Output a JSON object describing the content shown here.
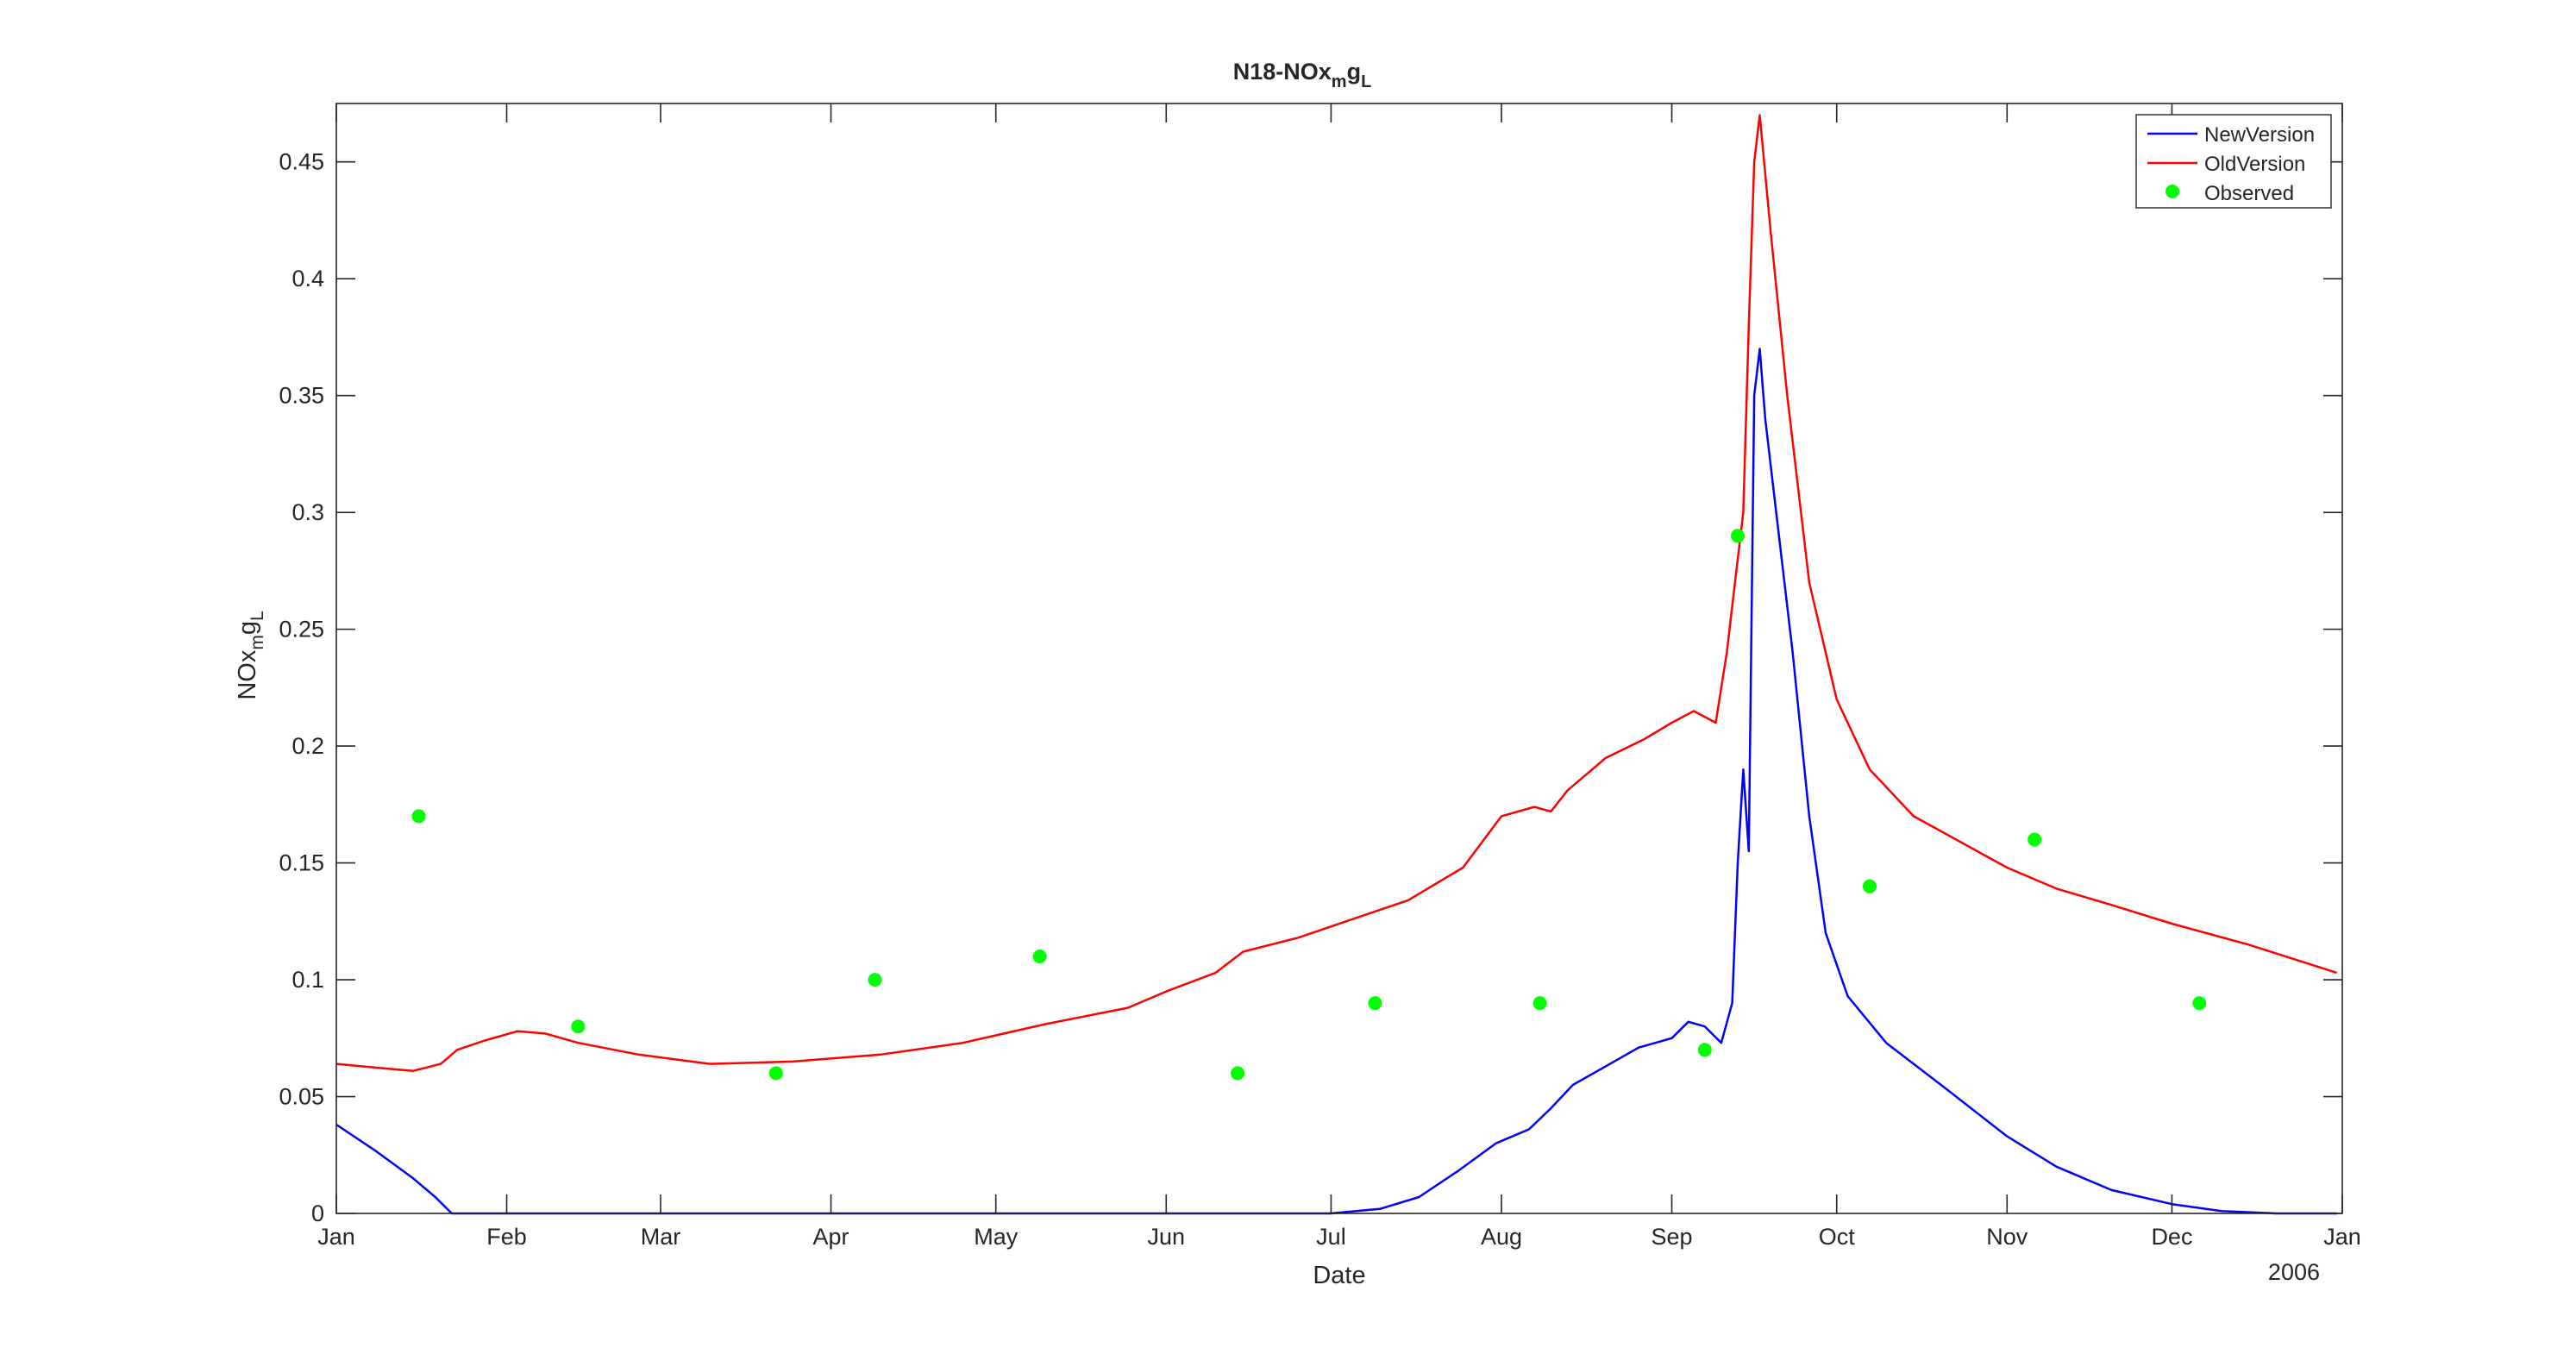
{
  "chart_data": {
    "type": "line",
    "title": {
      "main": "N18-NOx",
      "sub1": "m",
      "mid": "g",
      "sub2": "L"
    },
    "xlabel": "Date",
    "ylabel": {
      "main": "NOx",
      "sub1": "m",
      "mid": "g",
      "sub2": "L"
    },
    "year_label": "2006",
    "xlim": [
      "2006-01-01",
      "2007-01-01"
    ],
    "ylim": [
      0,
      0.475
    ],
    "x_ticks": [
      {
        "date": "2006-01-01",
        "label": "Jan"
      },
      {
        "date": "2006-02-01",
        "label": "Feb"
      },
      {
        "date": "2006-03-01",
        "label": "Mar"
      },
      {
        "date": "2006-04-01",
        "label": "Apr"
      },
      {
        "date": "2006-05-01",
        "label": "May"
      },
      {
        "date": "2006-06-01",
        "label": "Jun"
      },
      {
        "date": "2006-07-01",
        "label": "Jul"
      },
      {
        "date": "2006-08-01",
        "label": "Aug"
      },
      {
        "date": "2006-09-01",
        "label": "Sep"
      },
      {
        "date": "2006-10-01",
        "label": "Oct"
      },
      {
        "date": "2006-11-01",
        "label": "Nov"
      },
      {
        "date": "2006-12-01",
        "label": "Dec"
      },
      {
        "date": "2007-01-01",
        "label": "Jan"
      }
    ],
    "y_ticks": [
      {
        "value": 0,
        "label": "0"
      },
      {
        "value": 0.05,
        "label": "0.05"
      },
      {
        "value": 0.1,
        "label": "0.1"
      },
      {
        "value": 0.15,
        "label": "0.15"
      },
      {
        "value": 0.2,
        "label": "0.2"
      },
      {
        "value": 0.25,
        "label": "0.25"
      },
      {
        "value": 0.3,
        "label": "0.3"
      },
      {
        "value": 0.35,
        "label": "0.35"
      },
      {
        "value": 0.4,
        "label": "0.4"
      },
      {
        "value": 0.45,
        "label": "0.45"
      }
    ],
    "legend_position": "top-right",
    "grid": false,
    "series": [
      {
        "name": "NewVersion",
        "color": "#0000ff",
        "style": "line",
        "points": [
          [
            "2006-01-01",
            0.038
          ],
          [
            "2006-01-08",
            0.027
          ],
          [
            "2006-01-15",
            0.015
          ],
          [
            "2006-01-19",
            0.007
          ],
          [
            "2006-01-22",
            0.0
          ],
          [
            "2006-07-01",
            0.0
          ],
          [
            "2006-07-10",
            0.002
          ],
          [
            "2006-07-17",
            0.007
          ],
          [
            "2006-07-24",
            0.018
          ],
          [
            "2006-07-31",
            0.03
          ],
          [
            "2006-08-06",
            0.036
          ],
          [
            "2006-08-10",
            0.045
          ],
          [
            "2006-08-14",
            0.055
          ],
          [
            "2006-08-20",
            0.063
          ],
          [
            "2006-08-26",
            0.071
          ],
          [
            "2006-09-01",
            0.075
          ],
          [
            "2006-09-04",
            0.082
          ],
          [
            "2006-09-07",
            0.08
          ],
          [
            "2006-09-10",
            0.073
          ],
          [
            "2006-09-12",
            0.09
          ],
          [
            "2006-09-13",
            0.15
          ],
          [
            "2006-09-14",
            0.19
          ],
          [
            "2006-09-15",
            0.155
          ],
          [
            "2006-09-16",
            0.35
          ],
          [
            "2006-09-17",
            0.37
          ],
          [
            "2006-09-18",
            0.34
          ],
          [
            "2006-09-20",
            0.3
          ],
          [
            "2006-09-23",
            0.24
          ],
          [
            "2006-09-26",
            0.17
          ],
          [
            "2006-09-29",
            0.12
          ],
          [
            "2006-10-03",
            0.093
          ],
          [
            "2006-10-10",
            0.073
          ],
          [
            "2006-10-20",
            0.055
          ],
          [
            "2006-11-01",
            0.033
          ],
          [
            "2006-11-10",
            0.02
          ],
          [
            "2006-11-20",
            0.01
          ],
          [
            "2006-12-01",
            0.004
          ],
          [
            "2006-12-10",
            0.001
          ],
          [
            "2006-12-20",
            0.0
          ],
          [
            "2006-12-31",
            0.0
          ]
        ]
      },
      {
        "name": "OldVersion",
        "color": "#ff0000",
        "style": "line",
        "points": [
          [
            "2006-01-01",
            0.064
          ],
          [
            "2006-01-10",
            0.062
          ],
          [
            "2006-01-15",
            0.061
          ],
          [
            "2006-01-20",
            0.064
          ],
          [
            "2006-01-23",
            0.07
          ],
          [
            "2006-01-28",
            0.074
          ],
          [
            "2006-02-03",
            0.078
          ],
          [
            "2006-02-08",
            0.077
          ],
          [
            "2006-02-14",
            0.073
          ],
          [
            "2006-02-25",
            0.068
          ],
          [
            "2006-03-10",
            0.064
          ],
          [
            "2006-03-25",
            0.065
          ],
          [
            "2006-04-10",
            0.068
          ],
          [
            "2006-04-25",
            0.073
          ],
          [
            "2006-05-10",
            0.081
          ],
          [
            "2006-05-25",
            0.088
          ],
          [
            "2006-06-01",
            0.095
          ],
          [
            "2006-06-10",
            0.103
          ],
          [
            "2006-06-15",
            0.112
          ],
          [
            "2006-06-25",
            0.118
          ],
          [
            "2006-07-05",
            0.126
          ],
          [
            "2006-07-15",
            0.134
          ],
          [
            "2006-07-25",
            0.148
          ],
          [
            "2006-08-01",
            0.17
          ],
          [
            "2006-08-07",
            0.174
          ],
          [
            "2006-08-10",
            0.172
          ],
          [
            "2006-08-13",
            0.181
          ],
          [
            "2006-08-20",
            0.195
          ],
          [
            "2006-08-27",
            0.203
          ],
          [
            "2006-09-01",
            0.21
          ],
          [
            "2006-09-05",
            0.215
          ],
          [
            "2006-09-09",
            0.21
          ],
          [
            "2006-09-11",
            0.24
          ],
          [
            "2006-09-13",
            0.28
          ],
          [
            "2006-09-14",
            0.3
          ],
          [
            "2006-09-15",
            0.38
          ],
          [
            "2006-09-16",
            0.45
          ],
          [
            "2006-09-17",
            0.47
          ],
          [
            "2006-09-19",
            0.42
          ],
          [
            "2006-09-22",
            0.35
          ],
          [
            "2006-09-26",
            0.27
          ],
          [
            "2006-10-01",
            0.22
          ],
          [
            "2006-10-07",
            0.19
          ],
          [
            "2006-10-15",
            0.17
          ],
          [
            "2006-11-01",
            0.148
          ],
          [
            "2006-11-10",
            0.139
          ],
          [
            "2006-11-20",
            0.132
          ],
          [
            "2006-12-01",
            0.124
          ],
          [
            "2006-12-15",
            0.115
          ],
          [
            "2006-12-31",
            0.103
          ]
        ]
      },
      {
        "name": "Observed",
        "color": "#00ff00",
        "style": "markers",
        "points": [
          [
            "2006-01-16",
            0.17
          ],
          [
            "2006-02-14",
            0.08
          ],
          [
            "2006-03-22",
            0.06
          ],
          [
            "2006-04-09",
            0.1
          ],
          [
            "2006-05-09",
            0.11
          ],
          [
            "2006-06-14",
            0.06
          ],
          [
            "2006-07-09",
            0.09
          ],
          [
            "2006-08-08",
            0.09
          ],
          [
            "2006-09-07",
            0.07
          ],
          [
            "2006-09-13",
            0.29
          ],
          [
            "2006-10-07",
            0.14
          ],
          [
            "2006-11-06",
            0.16
          ],
          [
            "2006-12-06",
            0.09
          ]
        ]
      }
    ]
  }
}
